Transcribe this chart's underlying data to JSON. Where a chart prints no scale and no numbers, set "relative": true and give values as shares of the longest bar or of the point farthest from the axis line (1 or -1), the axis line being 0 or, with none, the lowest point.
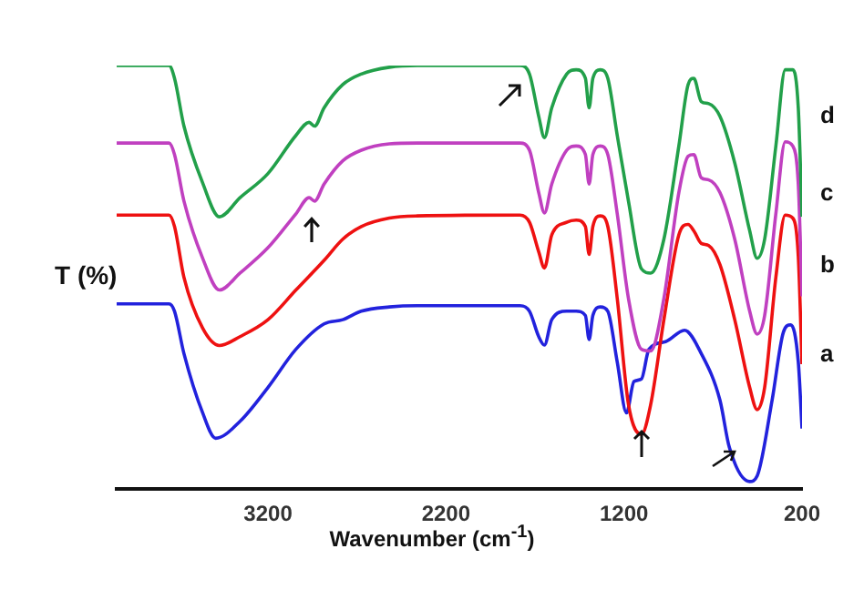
{
  "chart_data": {
    "type": "line",
    "xlabel": "Wavenumber (cm$^{-1}$)",
    "ylabel": "T (%)",
    "relative": true,
    "xlim": [
      4050,
      200
    ],
    "xticks": [
      3200,
      2200,
      1200,
      200
    ],
    "grid": false,
    "legend": false,
    "tick_labels": "x",
    "marker": "none",
    "line_style": "solid",
    "series": [
      {
        "name": "d",
        "color": "#22a04a",
        "x": [
          4050,
          3756,
          3725,
          3672,
          3567,
          3473,
          3357,
          3200,
          3043,
          2969,
          2938,
          2885,
          2780,
          2676,
          2518,
          2361,
          1784,
          1731,
          1679,
          1647,
          1606,
          1522,
          1469,
          1417,
          1396,
          1375,
          1333,
          1291,
          1238,
          1175,
          1102,
          1050,
          976,
          892,
          840,
          808,
          766,
          724,
          661,
          578,
          494,
          452,
          410,
          347,
          294,
          252,
          221,
          200
        ],
        "values": [
          1.0,
          1.0,
          0.97,
          0.857,
          0.723,
          0.643,
          0.688,
          0.745,
          0.835,
          0.866,
          0.857,
          0.9,
          0.955,
          0.98,
          0.996,
          1.0,
          1.0,
          0.98,
          0.88,
          0.83,
          0.9,
          0.98,
          0.99,
          0.97,
          0.9,
          0.97,
          0.99,
          0.97,
          0.835,
          0.68,
          0.52,
          0.51,
          0.59,
          0.81,
          0.955,
          0.97,
          0.915,
          0.91,
          0.88,
          0.77,
          0.61,
          0.545,
          0.59,
          0.81,
          0.99,
          0.99,
          0.9,
          0.643
        ]
      },
      {
        "name": "c",
        "color": "#c040c0",
        "x": [
          4050,
          3756,
          3725,
          3672,
          3567,
          3473,
          3357,
          3200,
          3043,
          2969,
          2938,
          2885,
          2780,
          2676,
          2518,
          2361,
          1784,
          1731,
          1679,
          1647,
          1606,
          1522,
          1469,
          1417,
          1396,
          1375,
          1333,
          1291,
          1238,
          1175,
          1102,
          1050,
          976,
          892,
          840,
          808,
          766,
          724,
          661,
          578,
          494,
          452,
          410,
          347,
          294,
          252,
          221,
          200
        ],
        "values": [
          0.817,
          0.817,
          0.79,
          0.68,
          0.545,
          0.47,
          0.51,
          0.57,
          0.65,
          0.688,
          0.68,
          0.72,
          0.775,
          0.8,
          0.815,
          0.817,
          0.817,
          0.8,
          0.7,
          0.652,
          0.72,
          0.8,
          0.81,
          0.79,
          0.72,
          0.79,
          0.81,
          0.79,
          0.65,
          0.45,
          0.33,
          0.326,
          0.45,
          0.7,
          0.786,
          0.79,
          0.735,
          0.73,
          0.7,
          0.59,
          0.42,
          0.366,
          0.41,
          0.65,
          0.82,
          0.81,
          0.72,
          0.455
        ]
      },
      {
        "name": "b",
        "color": "#ee1111",
        "x": [
          4050,
          3756,
          3725,
          3672,
          3567,
          3473,
          3357,
          3200,
          3043,
          2885,
          2780,
          2676,
          2518,
          2361,
          1784,
          1731,
          1679,
          1647,
          1606,
          1522,
          1469,
          1417,
          1396,
          1375,
          1333,
          1291,
          1238,
          1175,
          1102,
          1050,
          976,
          892,
          840,
          808,
          766,
          724,
          661,
          578,
          494,
          452,
          410,
          347,
          294,
          252,
          221,
          200
        ],
        "values": [
          0.647,
          0.647,
          0.62,
          0.5,
          0.38,
          0.339,
          0.36,
          0.4,
          0.47,
          0.54,
          0.59,
          0.62,
          0.64,
          0.645,
          0.647,
          0.63,
          0.56,
          0.522,
          0.6,
          0.63,
          0.635,
          0.62,
          0.554,
          0.62,
          0.645,
          0.62,
          0.45,
          0.2,
          0.129,
          0.2,
          0.4,
          0.6,
          0.625,
          0.61,
          0.58,
          0.575,
          0.53,
          0.4,
          0.24,
          0.1875,
          0.24,
          0.5,
          0.647,
          0.64,
          0.55,
          0.295
        ]
      },
      {
        "name": "a",
        "color": "#2222dd",
        "x": [
          4050,
          3756,
          3725,
          3672,
          3567,
          3494,
          3357,
          3200,
          3043,
          2885,
          2780,
          2676,
          2518,
          2361,
          1784,
          1731,
          1679,
          1647,
          1606,
          1522,
          1469,
          1417,
          1396,
          1375,
          1333,
          1291,
          1238,
          1186,
          1144,
          1102,
          1060,
          966,
          860,
          766,
          661,
          608,
          494,
          452,
          368,
          305,
          263,
          221,
          200
        ],
        "values": [
          0.4375,
          0.4375,
          0.42,
          0.32,
          0.18,
          0.12,
          0.16,
          0.24,
          0.33,
          0.39,
          0.4,
          0.42,
          0.43,
          0.433,
          0.433,
          0.42,
          0.36,
          0.34,
          0.4,
          0.42,
          0.42,
          0.41,
          0.353,
          0.41,
          0.43,
          0.42,
          0.3,
          0.18,
          0.254,
          0.26,
          0.33,
          0.348,
          0.375,
          0.32,
          0.21,
          0.098,
          0.018,
          0.031,
          0.21,
          0.37,
          0.388,
          0.3,
          0.143
        ]
      }
    ]
  }
}
